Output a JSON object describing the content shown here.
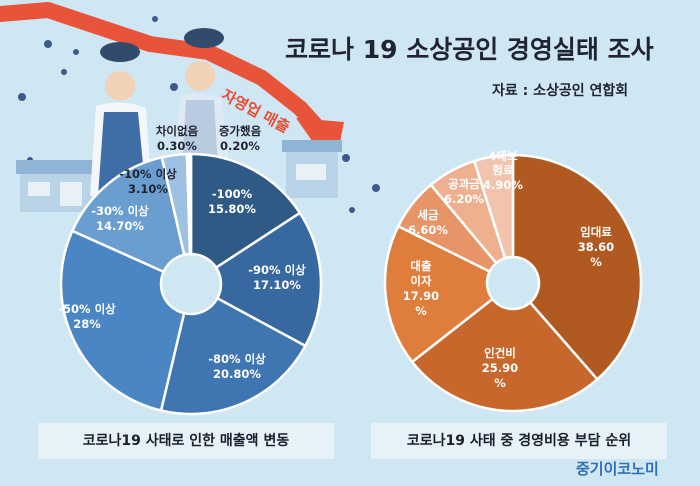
{
  "header": {
    "title": "코로나 19 소상공인 경영실태 조사",
    "source": "자료 : 소상공인 연합회",
    "slanted_text": "자영업 매출"
  },
  "brand": "중기이코노미",
  "colors": {
    "background": "#cfe6f3",
    "arrow": "#e8543a",
    "caption_bg": "#e6f1f8",
    "brand": "#2f6fb4"
  },
  "chart_data": [
    {
      "type": "pie",
      "variant": "donut",
      "title": "코로나19 사태로 인한 매출액 변동",
      "slices": [
        {
          "label": "-100%",
          "value": 15.8,
          "value_label": "15.80%",
          "color": "#2f5a86"
        },
        {
          "label": "-90% 이상",
          "value": 17.1,
          "value_label": "17.10%",
          "color": "#3868a0"
        },
        {
          "label": "-80% 이상",
          "value": 20.8,
          "value_label": "20.80%",
          "color": "#3f76b2"
        },
        {
          "label": "-50% 이상",
          "value": 28,
          "value_label": "28%",
          "color": "#4a86c4"
        },
        {
          "label": "-30% 이상",
          "value": 14.7,
          "value_label": "14.70%",
          "color": "#6a9dd0"
        },
        {
          "label": "-10% 이상",
          "value": 3.1,
          "value_label": "3.10%",
          "color": "#9ec0e3"
        },
        {
          "label": "차이없음",
          "value": 0.3,
          "value_label": "0.30%",
          "color": "#cfe0f0"
        },
        {
          "label": "증가했음",
          "value": 0.2,
          "value_label": "0.20%",
          "color": "#e1edf7"
        }
      ]
    },
    {
      "type": "pie",
      "variant": "donut",
      "title": "코로나19 사태 중 경영비용 부담 순위",
      "slices": [
        {
          "label": "임대료",
          "value": 38.6,
          "value_label": "38.60%",
          "color": "#b05a22"
        },
        {
          "label": "인건비",
          "value": 25.9,
          "value_label": "25.90%",
          "color": "#c8672b"
        },
        {
          "label": "대출이자",
          "value": 17.9,
          "value_label": "17.90%",
          "color": "#df7d3c"
        },
        {
          "label": "세금",
          "value": 6.6,
          "value_label": "6.60%",
          "color": "#e79466"
        },
        {
          "label": "공과금",
          "value": 6.2,
          "value_label": "6.20%",
          "color": "#eeb08f"
        },
        {
          "label": "4대보험료",
          "value": 4.9,
          "value_label": "4.90%",
          "color": "#f2c4ae"
        }
      ]
    }
  ]
}
